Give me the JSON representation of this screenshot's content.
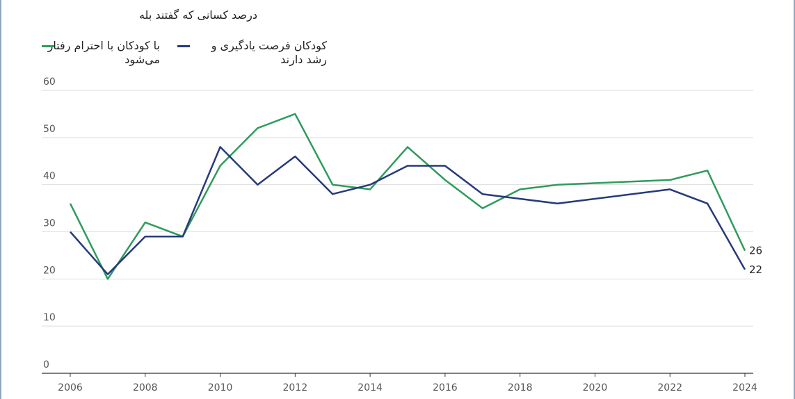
{
  "chart_data": {
    "type": "line",
    "title": "درصد کسانی که گفتند بله",
    "x": [
      2006,
      2007,
      2008,
      2009,
      2010,
      2011,
      2012,
      2013,
      2014,
      2015,
      2016,
      2017,
      2018,
      2019,
      2022,
      2023,
      2024
    ],
    "series": [
      {
        "name": "با کودکان با احترام رفتار می‌شود",
        "color": "#2e9b5c",
        "values": [
          36,
          20,
          32,
          29,
          44,
          52,
          55,
          40,
          39,
          48,
          41,
          35,
          39,
          40,
          41,
          43,
          26
        ]
      },
      {
        "name": "کودکان فرصت یادگیری و رشد دارند",
        "color": "#263a7a",
        "values": [
          30,
          21,
          29,
          29,
          48,
          40,
          46,
          38,
          40,
          44,
          44,
          38,
          37,
          36,
          39,
          36,
          22
        ]
      }
    ],
    "xlim": [
      2006,
      2024
    ],
    "xticks": [
      2006,
      2008,
      2010,
      2012,
      2014,
      2016,
      2018,
      2020,
      2022,
      2024
    ],
    "ylim": [
      0,
      60
    ],
    "yticks": [
      0,
      10,
      20,
      30,
      40,
      50,
      60
    ],
    "grid": true
  }
}
